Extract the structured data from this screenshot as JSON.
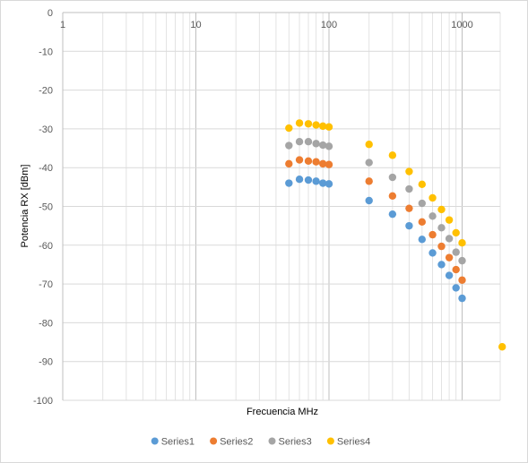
{
  "chart_data": {
    "type": "scatter",
    "title": "",
    "xlabel": "Frecuencia MHz",
    "ylabel": "Potencia RX [dBm]",
    "x_scale": "log",
    "xlim": [
      1,
      2000
    ],
    "ylim": [
      -100,
      0
    ],
    "x_ticks": [
      1,
      10,
      100,
      1000
    ],
    "x_tick_labels": [
      "1",
      "10",
      "100",
      "1000"
    ],
    "y_ticks": [
      0,
      -10,
      -20,
      -30,
      -40,
      -50,
      -60,
      -70,
      -80,
      -90,
      -100
    ],
    "y_tick_labels": [
      "0",
      "-10",
      "-20",
      "-30",
      "-40",
      "-50",
      "-60",
      "-70",
      "-80",
      "-90",
      "-100"
    ],
    "grid": true,
    "legend_position": "bottom",
    "series": [
      {
        "name": "Series1",
        "color": "#5b9bd5",
        "x": [
          50,
          60,
          70,
          80,
          90,
          100,
          200,
          300,
          400,
          500,
          600,
          700,
          800,
          900,
          1000
        ],
        "y": [
          -44,
          -43,
          -43.2,
          -43.5,
          -44,
          -44.2,
          -48.5,
          -52,
          -55,
          -58.5,
          -62,
          -65,
          -67.8,
          -71,
          -73.7
        ]
      },
      {
        "name": "Series2",
        "color": "#ed7d31",
        "x": [
          50,
          60,
          70,
          80,
          90,
          100,
          200,
          300,
          400,
          500,
          600,
          700,
          800,
          900,
          1000
        ],
        "y": [
          -39,
          -38,
          -38.3,
          -38.5,
          -39,
          -39.2,
          -43.5,
          -47.3,
          -50.5,
          -54,
          -57.3,
          -60.3,
          -63.2,
          -66.3,
          -69
        ]
      },
      {
        "name": "Series3",
        "color": "#a5a5a5",
        "x": [
          50,
          60,
          70,
          80,
          90,
          100,
          200,
          300,
          400,
          500,
          600,
          700,
          800,
          900,
          1000
        ],
        "y": [
          -34.3,
          -33.3,
          -33.3,
          -33.8,
          -34.2,
          -34.5,
          -38.7,
          -42.5,
          -45.5,
          -49.2,
          -52.5,
          -55.5,
          -58.3,
          -61.8,
          -64
        ]
      },
      {
        "name": "Series4",
        "color": "#ffc000",
        "x": [
          50,
          60,
          70,
          80,
          90,
          100,
          200,
          300,
          400,
          500,
          600,
          700,
          800,
          900,
          1000,
          2000
        ],
        "y": [
          -29.8,
          -28.5,
          -28.7,
          -29,
          -29.3,
          -29.5,
          -34,
          -36.8,
          -41,
          -44.3,
          -47.8,
          -50.8,
          -53.5,
          -56.8,
          -59.4,
          -86.2
        ]
      }
    ]
  }
}
